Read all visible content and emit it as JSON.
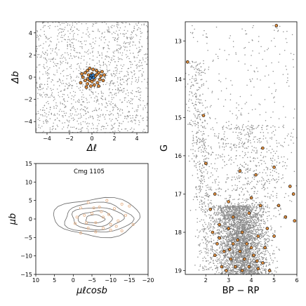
{
  "chart_data": [
    {
      "id": "sky",
      "type": "scatter",
      "xlabel": "Δℓ",
      "ylabel": "Δb",
      "xlim": [
        -5,
        5
      ],
      "ylim": [
        -5,
        5
      ],
      "xticks": [
        -4,
        -2,
        0,
        2,
        4
      ],
      "yticks": [
        -4,
        -2,
        0,
        2,
        4
      ],
      "xtick_labels": [
        "−4",
        "−2",
        "0",
        "2",
        "4"
      ],
      "ytick_labels": [
        "−4",
        "−2",
        "0",
        "2",
        "4"
      ],
      "grid": false,
      "series": [
        {
          "role": "field stars",
          "color": "#8c8c8c",
          "marker_size": "small",
          "distribution": "uniform",
          "x_range": [
            -5,
            5
          ],
          "y_range": [
            -5,
            5
          ]
        },
        {
          "role": "members",
          "color": "#d98a3d",
          "edgecolor": "#000000",
          "center": [
            0.0,
            0.0
          ],
          "points": [
            [
              -0.6,
              0.4
            ],
            [
              -0.4,
              0.6
            ],
            [
              -0.2,
              0.8
            ],
            [
              0.1,
              0.7
            ],
            [
              0.4,
              0.6
            ],
            [
              0.6,
              0.4
            ],
            [
              0.8,
              0.1
            ],
            [
              0.7,
              -0.2
            ],
            [
              0.5,
              -0.5
            ],
            [
              0.2,
              -0.7
            ],
            [
              -0.1,
              -0.8
            ],
            [
              -0.4,
              -0.6
            ],
            [
              -0.6,
              -0.3
            ],
            [
              -0.8,
              0.0
            ],
            [
              -0.3,
              0.2
            ],
            [
              0.0,
              0.3
            ],
            [
              0.3,
              0.1
            ],
            [
              0.2,
              -0.2
            ],
            [
              -0.2,
              -0.3
            ],
            [
              1.0,
              -0.3
            ],
            [
              -0.9,
              0.3
            ],
            [
              0.9,
              0.5
            ],
            [
              -0.5,
              -0.9
            ],
            [
              0.6,
              -0.8
            ],
            [
              0.0,
              -0.4
            ],
            [
              -0.1,
              0.1
            ],
            [
              0.45,
              0.25
            ],
            [
              -0.35,
              -0.15
            ],
            [
              1.1,
              0.2
            ],
            [
              -1.0,
              -0.5
            ]
          ]
        },
        {
          "role": "members",
          "color": "#3b7fc4",
          "edgecolor": "#000000",
          "points": [
            [
              0.05,
              0.05
            ],
            [
              0.15,
              -0.05
            ],
            [
              -0.05,
              0.15
            ],
            [
              0.1,
              0.2
            ],
            [
              -0.15,
              -0.1
            ]
          ]
        }
      ]
    },
    {
      "id": "proper-motion",
      "type": "scatter",
      "xlabel": "μℓcosb",
      "ylabel": "μb",
      "xlim": [
        10,
        -20
      ],
      "ylim": [
        -15,
        15
      ],
      "xticks": [
        10,
        5,
        0,
        -5,
        -10,
        -15,
        -20
      ],
      "yticks": [
        -15,
        -10,
        -5,
        0,
        5,
        10,
        15
      ],
      "xtick_labels": [
        "10",
        "5",
        "0",
        "−5",
        "−10",
        "−15",
        "−20"
      ],
      "ytick_labels": [
        "−15",
        "−10",
        "−5",
        "0",
        "5",
        "10",
        "15"
      ],
      "annotation": "Cmg 1105",
      "grid": false,
      "contours": [
        {
          "cx": -6.5,
          "cy": 0.5,
          "rx": 11.5,
          "ry": 5.2
        },
        {
          "cx": -6.5,
          "cy": 0.3,
          "rx": 9.0,
          "ry": 4.0
        },
        {
          "cx": -6.3,
          "cy": 0.2,
          "rx": 6.8,
          "ry": 3.0
        },
        {
          "cx": -6.0,
          "cy": 0.1,
          "rx": 4.6,
          "ry": 2.0
        },
        {
          "cx": -5.8,
          "cy": 0.0,
          "rx": 2.5,
          "ry": 1.1
        }
      ],
      "series": [
        {
          "role": "members",
          "color": "#e8b48a",
          "points": [
            [
              -2,
              3
            ],
            [
              -4,
              4.5
            ],
            [
              -7,
              3.2
            ],
            [
              -9,
              5
            ],
            [
              -11,
              2.8
            ],
            [
              -13,
              4
            ],
            [
              -15,
              3.5
            ],
            [
              -1,
              0.5
            ],
            [
              -3,
              1
            ],
            [
              -5,
              1.5
            ],
            [
              -6,
              -1
            ],
            [
              -8,
              0.5
            ],
            [
              -10,
              -1.5
            ],
            [
              -12,
              -0.5
            ],
            [
              -14,
              1
            ],
            [
              -4,
              -2.5
            ],
            [
              -6,
              -3.5
            ],
            [
              -8,
              -2.5
            ],
            [
              -10,
              -3
            ],
            [
              -2,
              -3.8
            ],
            [
              -13,
              -3.2
            ],
            [
              -16,
              -1.5
            ],
            [
              -0.5,
              -1.2
            ],
            [
              -7.5,
              2
            ],
            [
              -9.5,
              1.2
            ],
            [
              -11.5,
              -2
            ],
            [
              -5.5,
              3
            ],
            [
              -3.5,
              -1
            ]
          ]
        }
      ]
    },
    {
      "id": "cmd",
      "type": "scatter",
      "xlabel": "BP − RP",
      "ylabel": "G",
      "xlim": [
        1.1,
        6.0
      ],
      "ylim": [
        19.1,
        12.5
      ],
      "xticks": [
        2,
        3,
        4,
        5,
        6
      ],
      "yticks": [
        13,
        14,
        15,
        16,
        17,
        18,
        19
      ],
      "xtick_labels": [
        "2",
        "3",
        "4",
        "5",
        "6"
      ],
      "ytick_labels": [
        "13",
        "14",
        "15",
        "16",
        "17",
        "18",
        "19"
      ],
      "grid": false,
      "series": [
        {
          "role": "field stars",
          "color": "#8c8c8c",
          "marker_size": "small"
        },
        {
          "role": "members",
          "color": "#d98a3d",
          "edgecolor": "#000000",
          "points": [
            [
              5.1,
              12.6
            ],
            [
              1.2,
              13.55
            ],
            [
              1.9,
              14.95
            ],
            [
              2.0,
              16.2
            ],
            [
              4.5,
              15.8
            ],
            [
              5.0,
              16.3
            ],
            [
              5.7,
              16.8
            ],
            [
              5.85,
              17.0
            ],
            [
              3.5,
              16.4
            ],
            [
              4.2,
              16.5
            ],
            [
              2.4,
              17.0
            ],
            [
              2.2,
              17.4
            ],
            [
              3.0,
              17.2
            ],
            [
              4.0,
              17.1
            ],
            [
              4.4,
              17.3
            ],
            [
              5.2,
              17.3
            ],
            [
              5.5,
              17.6
            ],
            [
              5.9,
              17.7
            ],
            [
              2.6,
              17.8
            ],
            [
              3.2,
              17.6
            ],
            [
              3.9,
              17.5
            ],
            [
              4.7,
              17.9
            ],
            [
              2.3,
              18.0
            ],
            [
              3.0,
              17.9
            ],
            [
              3.6,
              18.0
            ],
            [
              4.3,
              18.1
            ],
            [
              5.0,
              18.1
            ],
            [
              2.5,
              18.3
            ],
            [
              3.2,
              18.3
            ],
            [
              3.8,
              18.3
            ],
            [
              4.6,
              18.4
            ],
            [
              2.8,
              18.5
            ],
            [
              3.5,
              18.5
            ],
            [
              4.1,
              18.6
            ],
            [
              2.4,
              18.6
            ],
            [
              3.1,
              18.7
            ],
            [
              3.7,
              18.7
            ],
            [
              4.5,
              18.8
            ],
            [
              2.7,
              18.9
            ],
            [
              3.3,
              18.9
            ],
            [
              3.9,
              18.9
            ],
            [
              4.3,
              18.95
            ],
            [
              2.9,
              19.0
            ],
            [
              3.6,
              19.0
            ],
            [
              4.8,
              19.0
            ],
            [
              3.4,
              18.2
            ],
            [
              4.0,
              18.4
            ],
            [
              2.6,
              18.15
            ],
            [
              3.05,
              18.45
            ],
            [
              4.25,
              18.75
            ]
          ]
        }
      ]
    }
  ]
}
